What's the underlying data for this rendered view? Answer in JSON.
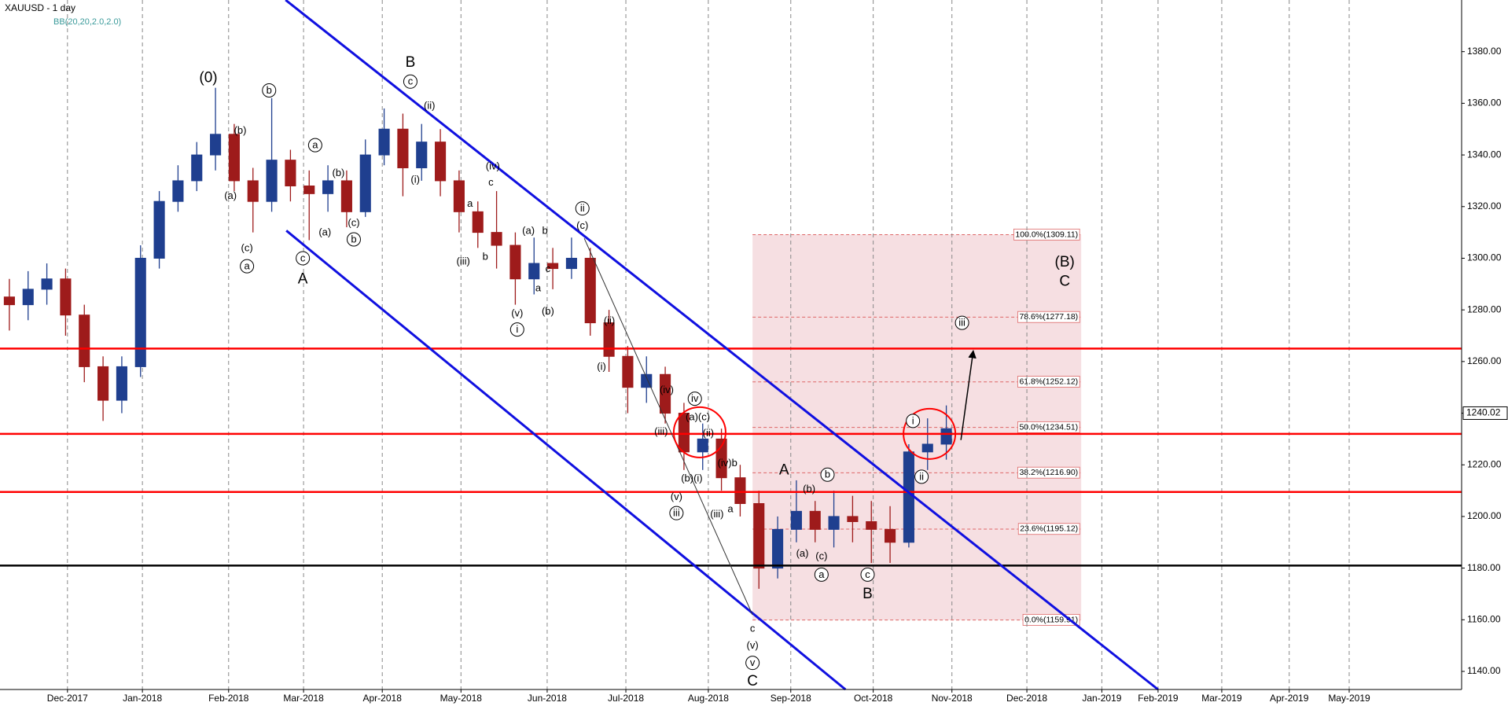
{
  "chart_data": {
    "type": "candlestick",
    "title": "XAUUSD - 1 day",
    "subtitle": "BB(20,20,2.0,2.0)",
    "x": [
      2.5,
      7.5,
      12.5,
      17.5,
      22.5,
      27.5,
      32.5,
      37.5,
      42.5,
      47.5,
      52.5,
      57.5,
      62.5,
      67.5,
      72.5,
      77.5,
      82.5,
      87.5,
      92.5,
      97.5,
      102.5,
      107.5,
      112.5,
      117.5,
      122.5,
      127.5,
      132.5,
      137.5,
      142.5,
      147.5,
      152.5,
      157.5,
      162.5,
      167.5,
      172.5,
      177.5,
      182.5,
      187.5,
      192.5,
      197.5,
      202.5,
      207.5,
      212.5,
      217.5,
      222.5,
      227.5,
      232.5,
      237.5,
      242.5,
      247.5,
      252.5
    ],
    "open": [
      1285,
      1282,
      1288,
      1292,
      1278,
      1258,
      1245,
      1258,
      1300,
      1322,
      1330,
      1340,
      1348,
      1330,
      1322,
      1338,
      1328,
      1325,
      1330,
      1318,
      1340,
      1350,
      1335,
      1345,
      1330,
      1318,
      1310,
      1305,
      1292,
      1298,
      1296,
      1300,
      1275,
      1262,
      1250,
      1255,
      1240,
      1225,
      1230,
      1215,
      1205,
      1180,
      1195,
      1202,
      1195,
      1200,
      1198,
      1195,
      1190,
      1225,
      1228
    ],
    "high": [
      1292,
      1295,
      1298,
      1296,
      1282,
      1262,
      1262,
      1305,
      1326,
      1336,
      1345,
      1366,
      1352,
      1335,
      1362,
      1342,
      1334,
      1336,
      1334,
      1346,
      1358,
      1356,
      1352,
      1350,
      1334,
      1322,
      1326,
      1310,
      1308,
      1304,
      1308,
      1304,
      1280,
      1266,
      1262,
      1258,
      1244,
      1236,
      1234,
      1220,
      1210,
      1200,
      1214,
      1206,
      1210,
      1208,
      1206,
      1204,
      1228,
      1238,
      1243
    ],
    "low": [
      1272,
      1276,
      1282,
      1270,
      1252,
      1237,
      1240,
      1254,
      1296,
      1318,
      1326,
      1334,
      1326,
      1310,
      1318,
      1322,
      1307,
      1318,
      1312,
      1316,
      1336,
      1324,
      1330,
      1324,
      1310,
      1304,
      1296,
      1282,
      1286,
      1288,
      1292,
      1270,
      1256,
      1240,
      1244,
      1236,
      1218,
      1218,
      1210,
      1200,
      1172,
      1176,
      1190,
      1190,
      1188,
      1190,
      1182,
      1182,
      1188,
      1218,
      1222
    ],
    "close": [
      1282,
      1288,
      1292,
      1278,
      1258,
      1245,
      1258,
      1300,
      1322,
      1330,
      1340,
      1348,
      1330,
      1322,
      1338,
      1328,
      1325,
      1330,
      1318,
      1340,
      1350,
      1335,
      1345,
      1330,
      1318,
      1310,
      1305,
      1292,
      1298,
      1296,
      1300,
      1275,
      1262,
      1250,
      1255,
      1240,
      1225,
      1230,
      1215,
      1205,
      1180,
      1195,
      1202,
      1195,
      1200,
      1198,
      1195,
      1190,
      1225,
      1228,
      1234
    ],
    "up_color": "#1f3f8f",
    "down_color": "#9e1b1b",
    "xlim": [
      0,
      390
    ],
    "ylim": [
      1133,
      1400
    ],
    "xticks": [
      {
        "value": 18,
        "label": "Dec-2017"
      },
      {
        "value": 38,
        "label": "Jan-2018"
      },
      {
        "value": 61,
        "label": "Feb-2018"
      },
      {
        "value": 81,
        "label": "Mar-2018"
      },
      {
        "value": 102,
        "label": "Apr-2018"
      },
      {
        "value": 123,
        "label": "May-2018"
      },
      {
        "value": 146,
        "label": "Jun-2018"
      },
      {
        "value": 167,
        "label": "Jul-2018"
      },
      {
        "value": 189,
        "label": "Aug-2018"
      },
      {
        "value": 211,
        "label": "Sep-2018"
      },
      {
        "value": 233,
        "label": "Oct-2018"
      },
      {
        "value": 254,
        "label": "Nov-2018"
      },
      {
        "value": 274,
        "label": "Dec-2018"
      },
      {
        "value": 294,
        "label": "Jan-2019"
      },
      {
        "value": 309,
        "label": "Feb-2019"
      },
      {
        "value": 326,
        "label": "Mar-2019"
      },
      {
        "value": 344,
        "label": "Apr-2019"
      },
      {
        "value": 360,
        "label": "May-2019"
      }
    ],
    "yticks": [
      {
        "value": 1140,
        "label": "1140.00"
      },
      {
        "value": 1160,
        "label": "1160.00"
      },
      {
        "value": 1180,
        "label": "1180.00"
      },
      {
        "value": 1200,
        "label": "1200.00"
      },
      {
        "value": 1220,
        "label": "1220.00"
      },
      {
        "value": 1240,
        "label": "1240.00"
      },
      {
        "value": 1260,
        "label": "1260.00"
      },
      {
        "value": 1280,
        "label": "1280.00"
      },
      {
        "value": 1300,
        "label": "1300.00"
      },
      {
        "value": 1320,
        "label": "1320.00"
      },
      {
        "value": 1340,
        "label": "1340.00"
      },
      {
        "value": 1360,
        "label": "1360.00"
      },
      {
        "value": 1380,
        "label": "1380.00"
      }
    ],
    "grid_x": true,
    "last_price": 1240.02,
    "hlines": [
      {
        "value": 1265,
        "color": "#ff0000"
      },
      {
        "value": 1232,
        "color": "#ff0000"
      },
      {
        "value": 1209.5,
        "color": "#ff0000"
      },
      {
        "value": 1181,
        "color": "#000000"
      }
    ],
    "trendlines": [
      {
        "x": [
          76.2,
          309
        ],
        "y": [
          1400,
          1133
        ],
        "color": "#1010e0",
        "arrow": false
      },
      {
        "x": [
          76.4,
          225.6
        ],
        "y": [
          1310.7,
          1133
        ],
        "color": "#1010e0",
        "arrow": false
      },
      {
        "x": [
          155.9,
          200.8
        ],
        "y": [
          1307.7,
          1161.9
        ],
        "color": "#333333",
        "arrow": false
      },
      {
        "x": [
          256.4,
          259.7
        ],
        "y": [
          1229.6,
          1264.2
        ],
        "color": "#000000",
        "arrow": true
      }
    ],
    "fib": {
      "x": [
        200.8,
        288.5
      ],
      "color": "#f6dfe2",
      "levels": [
        {
          "value": 1309.11,
          "label": "100.0%(1309.11)"
        },
        {
          "value": 1277.18,
          "label": "78.6%(1277.18)"
        },
        {
          "value": 1252.12,
          "label": "61.8%(1252.12)"
        },
        {
          "value": 1234.51,
          "label": "50.0%(1234.51)"
        },
        {
          "value": 1216.9,
          "label": "38.2%(1216.90)"
        },
        {
          "value": 1195.12,
          "label": "23.6%(1195.12)"
        },
        {
          "value": 1159.91,
          "label": "0.0%(1159.91)"
        }
      ]
    },
    "circles": [
      {
        "x": 186.7,
        "y": 1232.6,
        "color": "#ff0000"
      },
      {
        "x": 248,
        "y": 1232,
        "color": "#ff0000"
      }
    ],
    "annotations": [
      {
        "text": "(0)",
        "x": 55.6,
        "y": 1369.9,
        "circled": false
      },
      {
        "text": "b",
        "x": 71.8,
        "y": 1365,
        "circled": true
      },
      {
        "text": "(b)",
        "x": 64.1,
        "y": 1349.4,
        "circled": false
      },
      {
        "text": "(a)",
        "x": 61.5,
        "y": 1324.1,
        "circled": false
      },
      {
        "text": "(c)",
        "x": 65.9,
        "y": 1304,
        "circled": false
      },
      {
        "text": "a",
        "x": 65.9,
        "y": 1296.9,
        "circled": true
      },
      {
        "text": "B",
        "x": 109.5,
        "y": 1375.8,
        "circled": false
      },
      {
        "text": "c",
        "x": 109.5,
        "y": 1368.4,
        "circled": true
      },
      {
        "text": "(ii)",
        "x": 114.6,
        "y": 1359.1,
        "circled": false
      },
      {
        "text": "(i)",
        "x": 110.8,
        "y": 1330.4,
        "circled": false
      },
      {
        "text": "a",
        "x": 84.1,
        "y": 1343.8,
        "circled": true
      },
      {
        "text": "(b)",
        "x": 90.3,
        "y": 1333,
        "circled": false
      },
      {
        "text": "(a)",
        "x": 86.7,
        "y": 1310,
        "circled": false
      },
      {
        "text": "(c)",
        "x": 94.4,
        "y": 1313.7,
        "circled": false
      },
      {
        "text": "b",
        "x": 94.4,
        "y": 1307.3,
        "circled": true
      },
      {
        "text": "c",
        "x": 80.8,
        "y": 1300,
        "circled": true
      },
      {
        "text": "A",
        "x": 80.8,
        "y": 1292,
        "circled": false
      },
      {
        "text": "(iv)",
        "x": 131.5,
        "y": 1335.6,
        "circled": false
      },
      {
        "text": "c",
        "x": 131,
        "y": 1329.3,
        "circled": false
      },
      {
        "text": "a",
        "x": 125.4,
        "y": 1321.1,
        "circled": false
      },
      {
        "text": "(iii)",
        "x": 123.6,
        "y": 1298.8,
        "circled": false
      },
      {
        "text": "b",
        "x": 129.5,
        "y": 1300.6,
        "circled": false
      },
      {
        "text": "(a)",
        "x": 141,
        "y": 1310.7,
        "circled": false
      },
      {
        "text": "b",
        "x": 145.4,
        "y": 1310.7,
        "circled": false
      },
      {
        "text": "c",
        "x": 146.2,
        "y": 1295.8,
        "circled": false
      },
      {
        "text": "a",
        "x": 143.6,
        "y": 1288.4,
        "circled": false
      },
      {
        "text": "(b)",
        "x": 146.2,
        "y": 1279.4,
        "circled": false
      },
      {
        "text": "(v)",
        "x": 138,
        "y": 1278.7,
        "circled": false
      },
      {
        "text": "i",
        "x": 138,
        "y": 1272.4,
        "circled": true
      },
      {
        "text": "ii",
        "x": 155.4,
        "y": 1319.3,
        "circled": true
      },
      {
        "text": "(c)",
        "x": 155.4,
        "y": 1312.6,
        "circled": false
      },
      {
        "text": "(ii)",
        "x": 162.6,
        "y": 1275.7,
        "circled": false
      },
      {
        "text": "(i)",
        "x": 160.5,
        "y": 1257.9,
        "circled": false
      },
      {
        "text": "(iv)",
        "x": 177.9,
        "y": 1248.9,
        "circled": false
      },
      {
        "text": "iv",
        "x": 185.4,
        "y": 1245.6,
        "circled": true
      },
      {
        "text": "(a)(c)",
        "x": 186.2,
        "y": 1238.5,
        "circled": false
      },
      {
        "text": "(iii)",
        "x": 176.4,
        "y": 1232.9,
        "circled": false
      },
      {
        "text": "(ii)",
        "x": 189,
        "y": 1232.2,
        "circled": false
      },
      {
        "text": "(b)(i)",
        "x": 184.6,
        "y": 1214.7,
        "circled": false
      },
      {
        "text": "(v)",
        "x": 180.5,
        "y": 1207.6,
        "circled": false
      },
      {
        "text": "iii",
        "x": 180.5,
        "y": 1201.3,
        "circled": true
      },
      {
        "text": "(iv)b",
        "x": 194.1,
        "y": 1220.7,
        "circled": false
      },
      {
        "text": "(iii)",
        "x": 191.3,
        "y": 1200.9,
        "circled": false
      },
      {
        "text": "a",
        "x": 194.9,
        "y": 1202.8,
        "circled": false
      },
      {
        "text": "c",
        "x": 200.8,
        "y": 1156.6,
        "circled": false
      },
      {
        "text": "(v)",
        "x": 200.8,
        "y": 1150,
        "circled": false
      },
      {
        "text": "v",
        "x": 200.8,
        "y": 1143.3,
        "circled": true
      },
      {
        "text": "C",
        "x": 200.8,
        "y": 1136.2,
        "circled": false
      },
      {
        "text": "A",
        "x": 209.2,
        "y": 1218,
        "circled": false
      },
      {
        "text": "b",
        "x": 220.8,
        "y": 1216.2,
        "circled": true
      },
      {
        "text": "(b)",
        "x": 215.9,
        "y": 1210.6,
        "circled": false
      },
      {
        "text": "(a)",
        "x": 214.1,
        "y": 1185.7,
        "circled": false
      },
      {
        "text": "(c)",
        "x": 219.2,
        "y": 1184.6,
        "circled": false
      },
      {
        "text": "a",
        "x": 219.2,
        "y": 1177.5,
        "circled": true
      },
      {
        "text": "c",
        "x": 231.5,
        "y": 1177.5,
        "circled": true
      },
      {
        "text": "B",
        "x": 231.5,
        "y": 1170,
        "circled": false
      },
      {
        "text": "i",
        "x": 243.6,
        "y": 1237,
        "circled": true
      },
      {
        "text": "ii",
        "x": 245.9,
        "y": 1215.4,
        "circled": true
      },
      {
        "text": "iii",
        "x": 256.7,
        "y": 1275,
        "circled": true
      },
      {
        "text": "(B)",
        "x": 284.1,
        "y": 1298.4,
        "circled": false
      },
      {
        "text": "C",
        "x": 284.1,
        "y": 1291,
        "circled": false
      }
    ]
  }
}
